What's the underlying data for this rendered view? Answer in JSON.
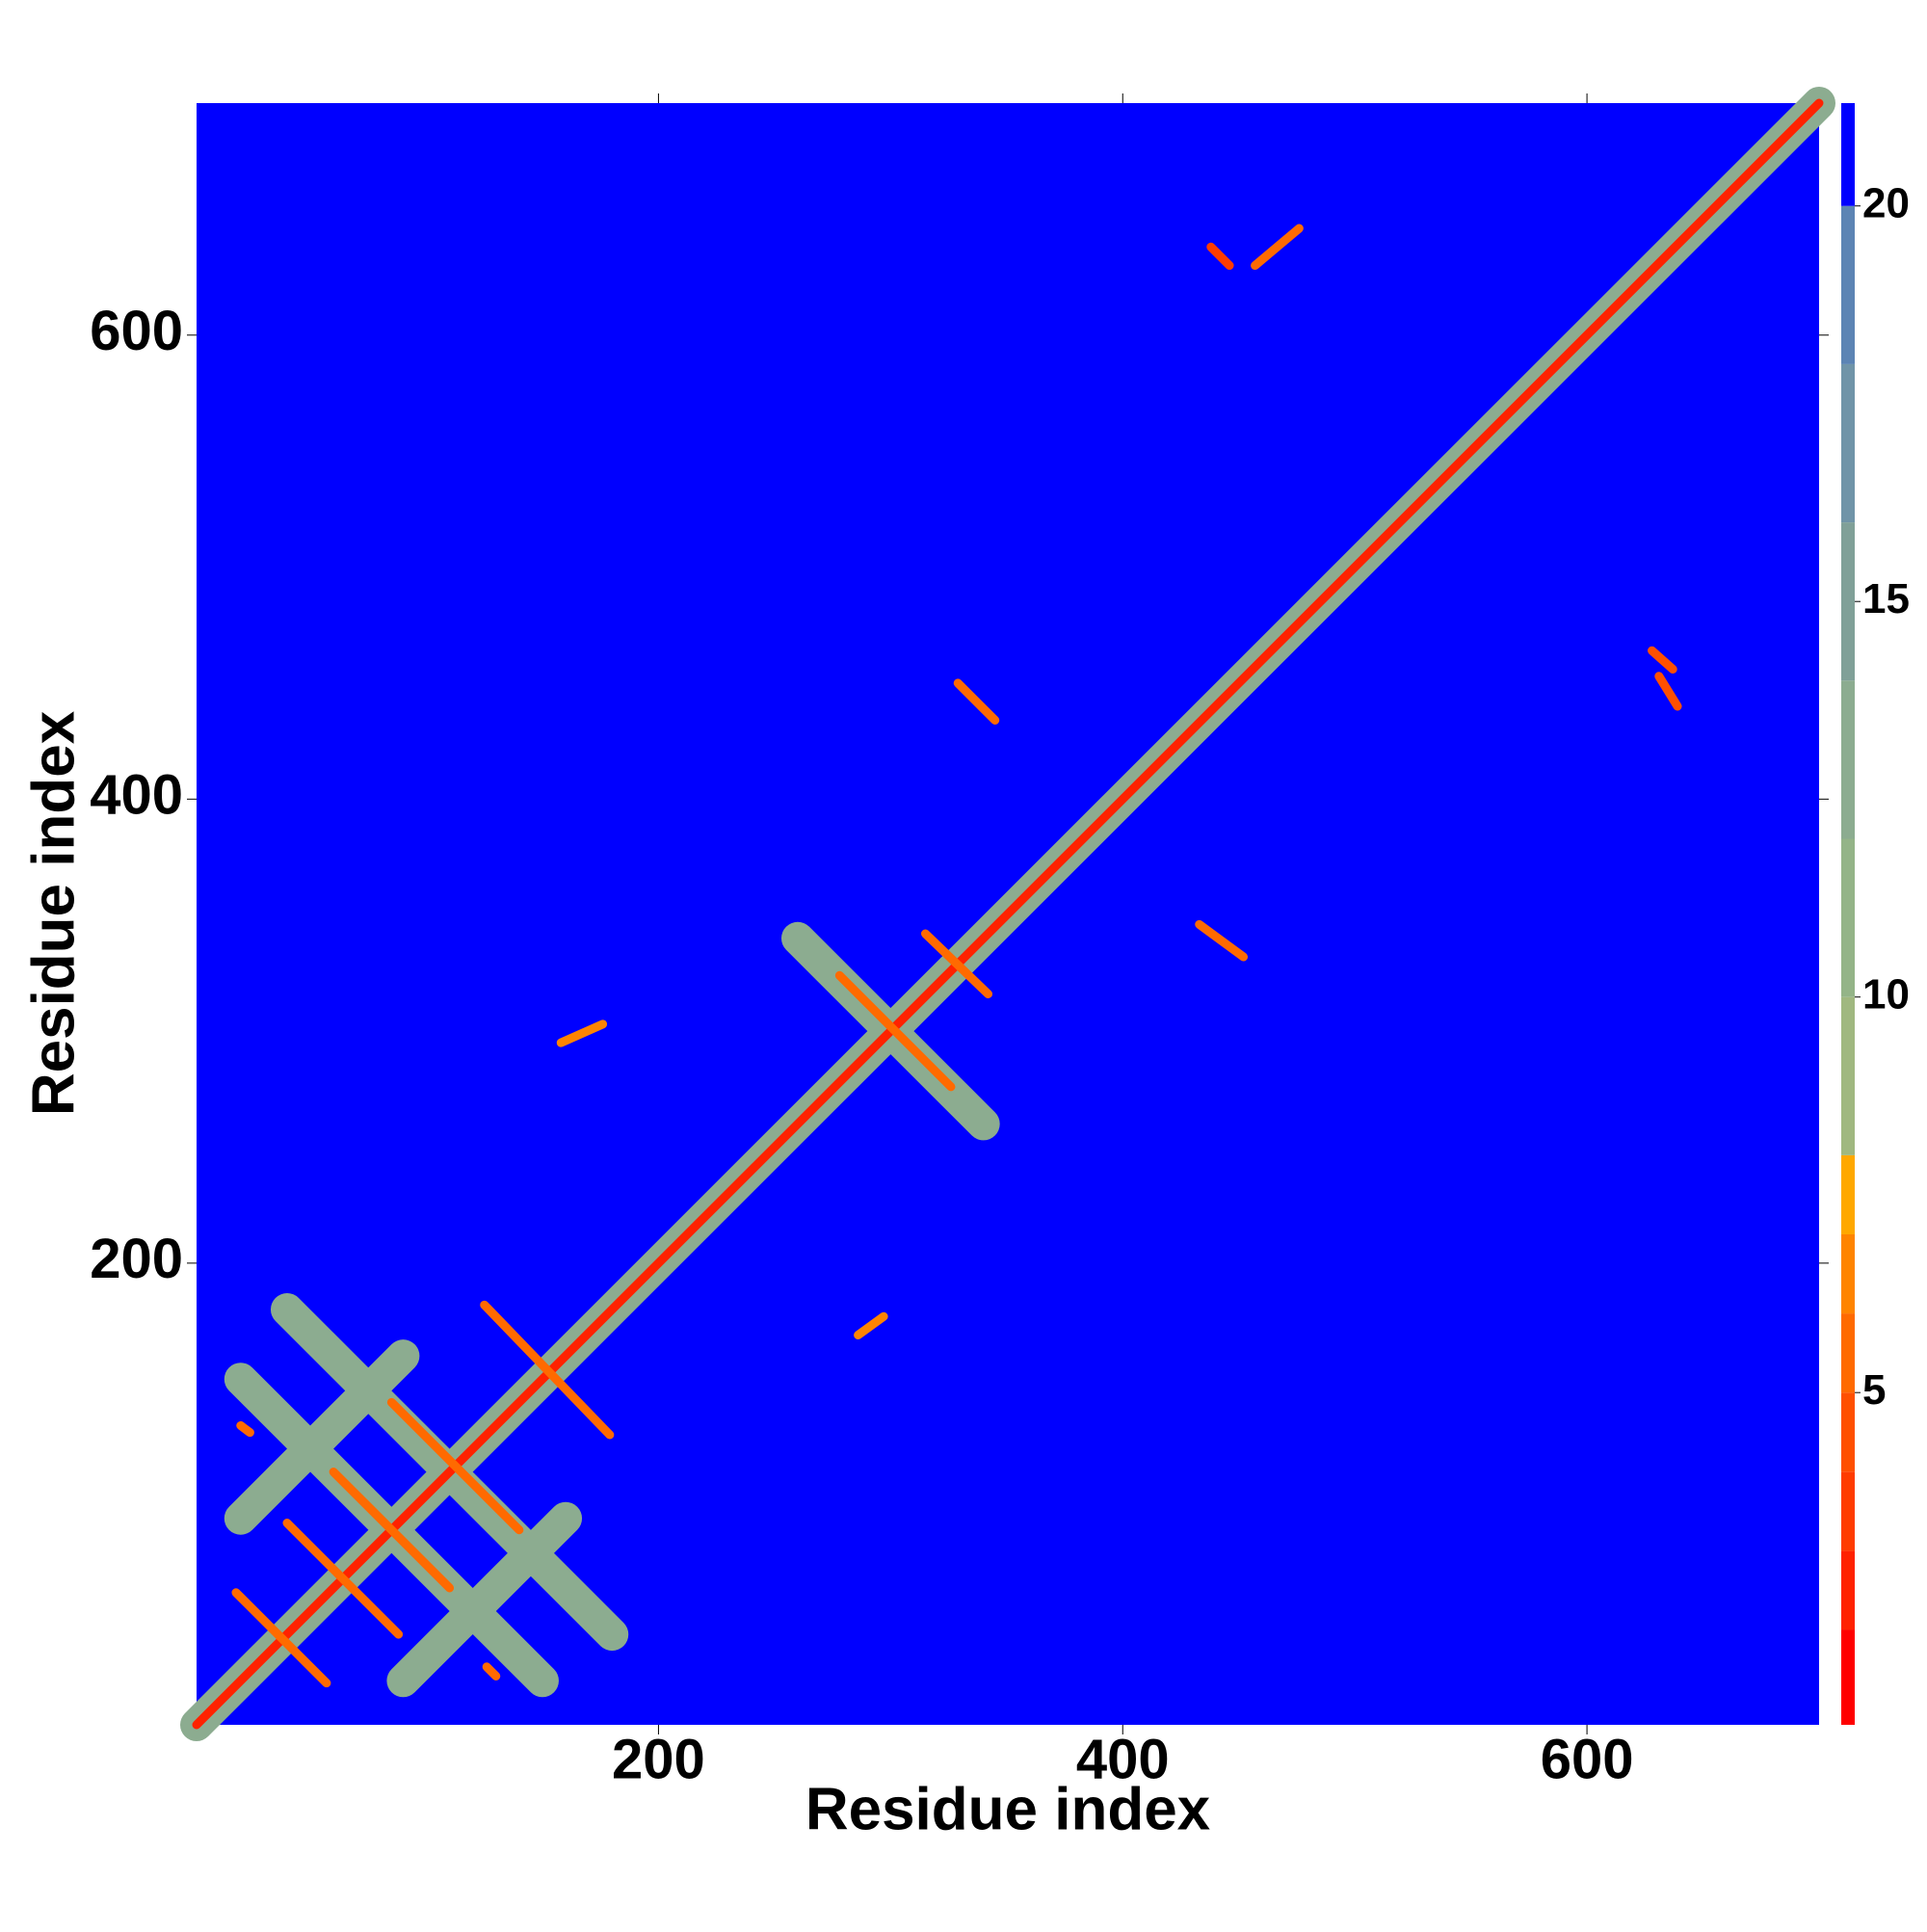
{
  "chart_data": {
    "type": "contact-map",
    "x_label": "Residue index",
    "y_label": "Residue index",
    "xlim": [
      1,
      700
    ],
    "ylim": [
      1,
      700
    ],
    "xticks": [
      200,
      400,
      600
    ],
    "yticks": [
      200,
      400,
      600
    ],
    "background": 21,
    "colorbar": {
      "lim": [
        0.8,
        21.3
      ],
      "ticks": [
        5,
        10,
        15,
        20
      ],
      "levels": [
        0.8,
        2,
        3,
        4,
        5,
        6,
        7,
        8,
        10,
        12,
        14,
        16,
        18,
        20,
        21.3
      ],
      "colors": [
        "#ff0000",
        "#ff2200",
        "#ff3c00",
        "#ff5000",
        "#ff6a00",
        "#ff8400",
        "#ffa800",
        "#a0b880",
        "#94b488",
        "#8cac90",
        "#80a098",
        "#7094a8",
        "#5c84b4",
        "#0000ff"
      ]
    },
    "segments": [
      {
        "x": [
          1,
          700
        ],
        "y": [
          1,
          700
        ],
        "value": 13
      },
      {
        "x": [
          20,
          150
        ],
        "y": [
          150,
          20
        ],
        "value": 13
      },
      {
        "x": [
          40,
          180
        ],
        "y": [
          180,
          40
        ],
        "value": 13
      },
      {
        "x": [
          20,
          90
        ],
        "y": [
          90,
          160
        ],
        "value": 13
      },
      {
        "x": [
          90,
          160
        ],
        "y": [
          20,
          90
        ],
        "value": 13
      },
      {
        "x": [
          260,
          340
        ],
        "y": [
          340,
          260
        ],
        "value": 13
      },
      {
        "x": [
          1,
          700
        ],
        "y": [
          1,
          700
        ],
        "value": 3
      },
      {
        "x": [
          18,
          57
        ],
        "y": [
          58,
          19
        ],
        "value": 6
      },
      {
        "x": [
          40,
          88
        ],
        "y": [
          88,
          40
        ],
        "value": 6
      },
      {
        "x": [
          60,
          110
        ],
        "y": [
          110,
          60
        ],
        "value": 6
      },
      {
        "x": [
          85,
          140
        ],
        "y": [
          140,
          85
        ],
        "value": 6
      },
      {
        "x": [
          125,
          179
        ],
        "y": [
          182,
          126
        ],
        "value": 6
      },
      {
        "x": [
          278,
          326
        ],
        "y": [
          324,
          276
        ],
        "value": 6
      },
      {
        "x": [
          315,
          342
        ],
        "y": [
          342,
          316
        ],
        "value": 6
      },
      {
        "x": [
          438,
          446
        ],
        "y": [
          638,
          630
        ],
        "value": 4
      },
      {
        "x": [
          457,
          476
        ],
        "y": [
          630,
          646
        ],
        "value": 6
      },
      {
        "x": [
          628,
          637
        ],
        "y": [
          464,
          456
        ],
        "value": 5
      },
      {
        "x": [
          631,
          639
        ],
        "y": [
          453,
          440
        ],
        "value": 5
      },
      {
        "x": [
          329,
          345
        ],
        "y": [
          450,
          434
        ],
        "value": 6
      },
      {
        "x": [
          433,
          452
        ],
        "y": [
          346,
          332
        ],
        "value": 6
      },
      {
        "x": [
          286,
          297
        ],
        "y": [
          169,
          177
        ],
        "value": 7
      },
      {
        "x": [
          158,
          176
        ],
        "y": [
          295,
          303
        ],
        "value": 7
      },
      {
        "x": [
          20,
          24
        ],
        "y": [
          130,
          127
        ],
        "value": 6
      },
      {
        "x": [
          126,
          130
        ],
        "y": [
          26,
          22
        ],
        "value": 6
      }
    ]
  }
}
